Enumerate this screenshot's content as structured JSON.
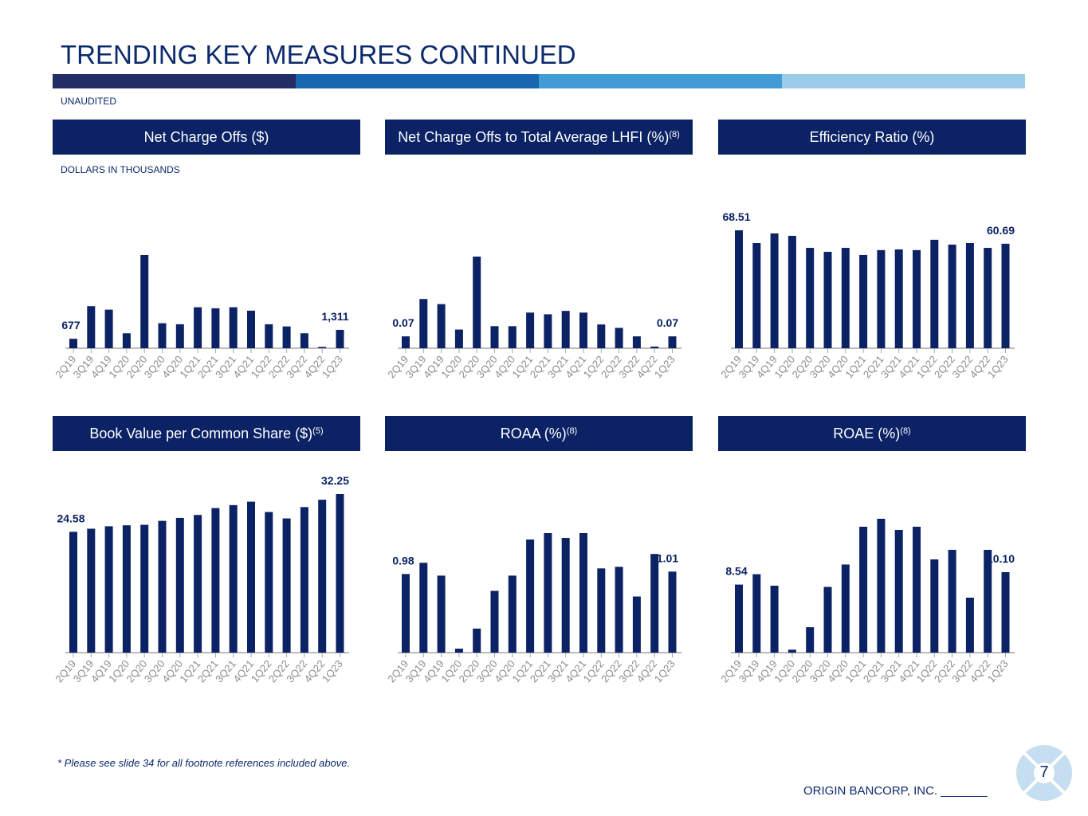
{
  "title": "TRENDING KEY MEASURES CONTINUED",
  "band_colors": [
    "#232c64",
    "#1867b0",
    "#419bd6",
    "#9ccbea"
  ],
  "unaudited": "UNAUDITED",
  "note": "DOLLARS IN THOUSANDS",
  "footnote": "* Please see slide 34 for all footnote references included above.",
  "brand": "ORIGIN BANCORP, INC. _______",
  "page_number": "7",
  "bar_color": "#0b2265",
  "chart_data": [
    {
      "type": "bar",
      "title": "Net Charge Offs ($)",
      "title_sup": "",
      "categories": [
        "2Q19",
        "3Q19",
        "4Q19",
        "1Q20",
        "2Q20",
        "3Q20",
        "4Q20",
        "1Q21",
        "2Q21",
        "3Q21",
        "4Q21",
        "1Q22",
        "2Q22",
        "3Q22",
        "4Q22",
        "1Q23"
      ],
      "values": [
        677,
        3000,
        2750,
        1065,
        6650,
        1785,
        1710,
        2925,
        2850,
        2925,
        2680,
        1710,
        1555,
        1065,
        95,
        1311
      ],
      "data_labels": {
        "first": "677",
        "last": "1,311"
      }
    },
    {
      "type": "bar",
      "title": "Net Charge Offs to Total Average LHFI (%)",
      "title_sup": "(8)",
      "categories": [
        "2Q19",
        "3Q19",
        "4Q19",
        "1Q20",
        "2Q20",
        "3Q20",
        "4Q20",
        "1Q21",
        "2Q21",
        "3Q21",
        "4Q21",
        "1Q22",
        "2Q22",
        "3Q22",
        "4Q22",
        "1Q23"
      ],
      "values": [
        0.07,
        0.29,
        0.26,
        0.11,
        0.54,
        0.13,
        0.13,
        0.21,
        0.2,
        0.22,
        0.21,
        0.14,
        0.12,
        0.07,
        0.01,
        0.07
      ],
      "data_labels": {
        "first": "0.07",
        "last": "0.07"
      }
    },
    {
      "type": "bar",
      "title": "Efficiency Ratio (%)",
      "title_sup": "",
      "categories": [
        "2Q19",
        "3Q19",
        "4Q19",
        "1Q20",
        "2Q20",
        "3Q20",
        "4Q20",
        "1Q21",
        "2Q21",
        "3Q21",
        "4Q21",
        "1Q22",
        "2Q22",
        "3Q22",
        "4Q22",
        "1Q23"
      ],
      "values": [
        68.51,
        61.1,
        66.7,
        65.3,
        58.3,
        56.0,
        58.3,
        54.2,
        57.0,
        57.4,
        57.0,
        63.0,
        60.2,
        61.1,
        58.3,
        60.69
      ],
      "data_labels": {
        "first": "68.51",
        "last": "60.69"
      }
    },
    {
      "type": "bar",
      "title": "Book Value per Common Share ($)",
      "title_sup": "(5)",
      "categories": [
        "2Q19",
        "3Q19",
        "4Q19",
        "1Q20",
        "2Q20",
        "3Q20",
        "4Q20",
        "1Q21",
        "2Q21",
        "3Q21",
        "4Q21",
        "1Q22",
        "2Q22",
        "3Q22",
        "4Q22",
        "1Q23"
      ],
      "values": [
        24.58,
        25.2,
        25.7,
        25.9,
        26.0,
        26.8,
        27.4,
        28.0,
        29.4,
        30.0,
        30.7,
        28.6,
        27.3,
        29.6,
        31.1,
        32.25
      ],
      "data_labels": {
        "first": "24.58",
        "last": "32.25"
      }
    },
    {
      "type": "bar",
      "title": "ROAA (%)",
      "title_sup": "(8)",
      "categories": [
        "2Q19",
        "3Q19",
        "4Q19",
        "1Q20",
        "2Q20",
        "3Q20",
        "4Q20",
        "1Q21",
        "2Q21",
        "3Q21",
        "4Q21",
        "1Q22",
        "2Q22",
        "3Q22",
        "4Q22",
        "1Q23"
      ],
      "values": [
        0.98,
        1.12,
        0.96,
        0.05,
        0.3,
        0.77,
        0.96,
        1.41,
        1.49,
        1.43,
        1.49,
        1.05,
        1.07,
        0.7,
        1.23,
        1.01
      ],
      "data_labels": {
        "first": "0.98",
        "last": "1.01"
      }
    },
    {
      "type": "bar",
      "title": "ROAE (%)",
      "title_sup": "(8)",
      "categories": [
        "2Q19",
        "3Q19",
        "4Q19",
        "1Q20",
        "2Q20",
        "3Q20",
        "4Q20",
        "1Q21",
        "2Q21",
        "3Q21",
        "4Q21",
        "1Q22",
        "2Q22",
        "3Q22",
        "4Q22",
        "1Q23"
      ],
      "values": [
        8.54,
        9.84,
        8.4,
        0.37,
        3.19,
        8.25,
        11.06,
        15.8,
        16.8,
        15.4,
        15.8,
        11.7,
        12.9,
        6.9,
        12.9,
        10.1
      ],
      "data_labels": {
        "first": "8.54",
        "last": "10.10"
      }
    }
  ]
}
